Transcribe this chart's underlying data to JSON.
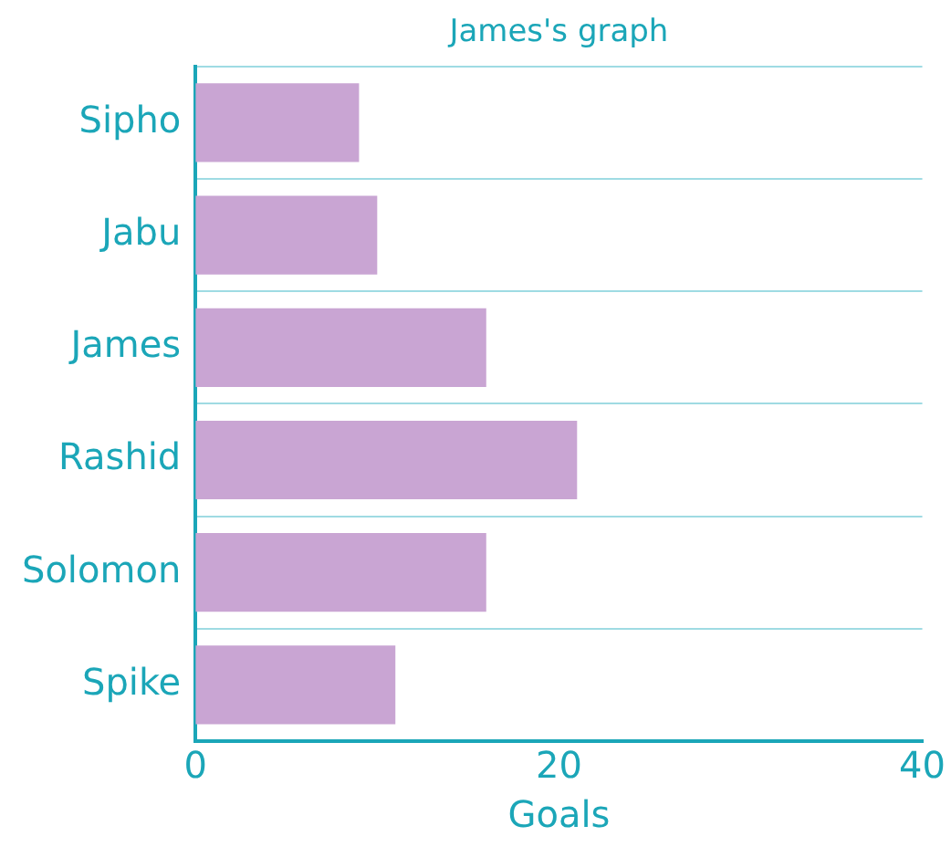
{
  "chart_data": {
    "type": "bar",
    "orientation": "horizontal",
    "title": "James's graph",
    "xlabel": "Goals",
    "categories": [
      "Sipho",
      "Jabu",
      "James",
      "Rashid",
      "Solomon",
      "Spike"
    ],
    "values": [
      9,
      10,
      16,
      21,
      16,
      11
    ],
    "color": "#c9a5d3",
    "xlim": [
      0,
      40
    ],
    "xticks": [
      0,
      20,
      40
    ],
    "grid": "y",
    "legend": false
  }
}
